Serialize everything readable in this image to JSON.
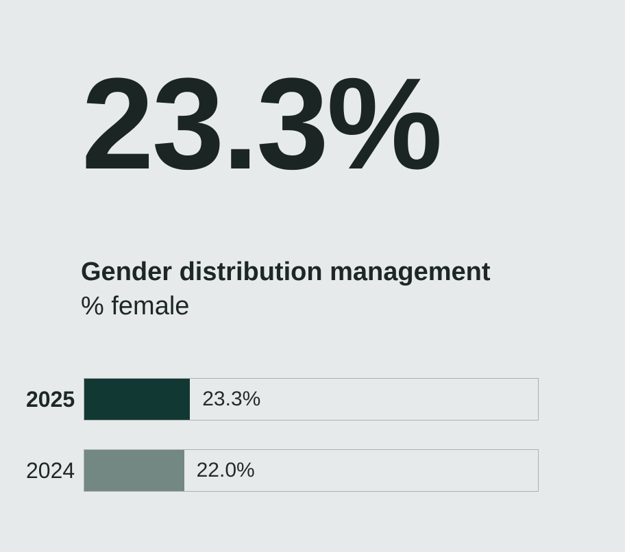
{
  "page": {
    "background_color": "#e7eaea",
    "text_color": "#1d2724"
  },
  "headline": {
    "value": "23.3%"
  },
  "title": {
    "line1": "Gender distribution management",
    "line2": "% female"
  },
  "chart_data": {
    "type": "bar",
    "orientation": "horizontal",
    "title": "Gender distribution management",
    "subtitle": "% female",
    "categories": [
      "2025",
      "2024"
    ],
    "values": [
      23.3,
      22.0
    ],
    "value_labels": [
      "23.3%",
      "22.0%"
    ],
    "xlim": [
      0,
      100
    ],
    "grid": false,
    "legend": false,
    "bar_colors": [
      "#123833",
      "#738883"
    ],
    "track_border_color": "#a9b0b0",
    "highlight_category": "2025"
  }
}
